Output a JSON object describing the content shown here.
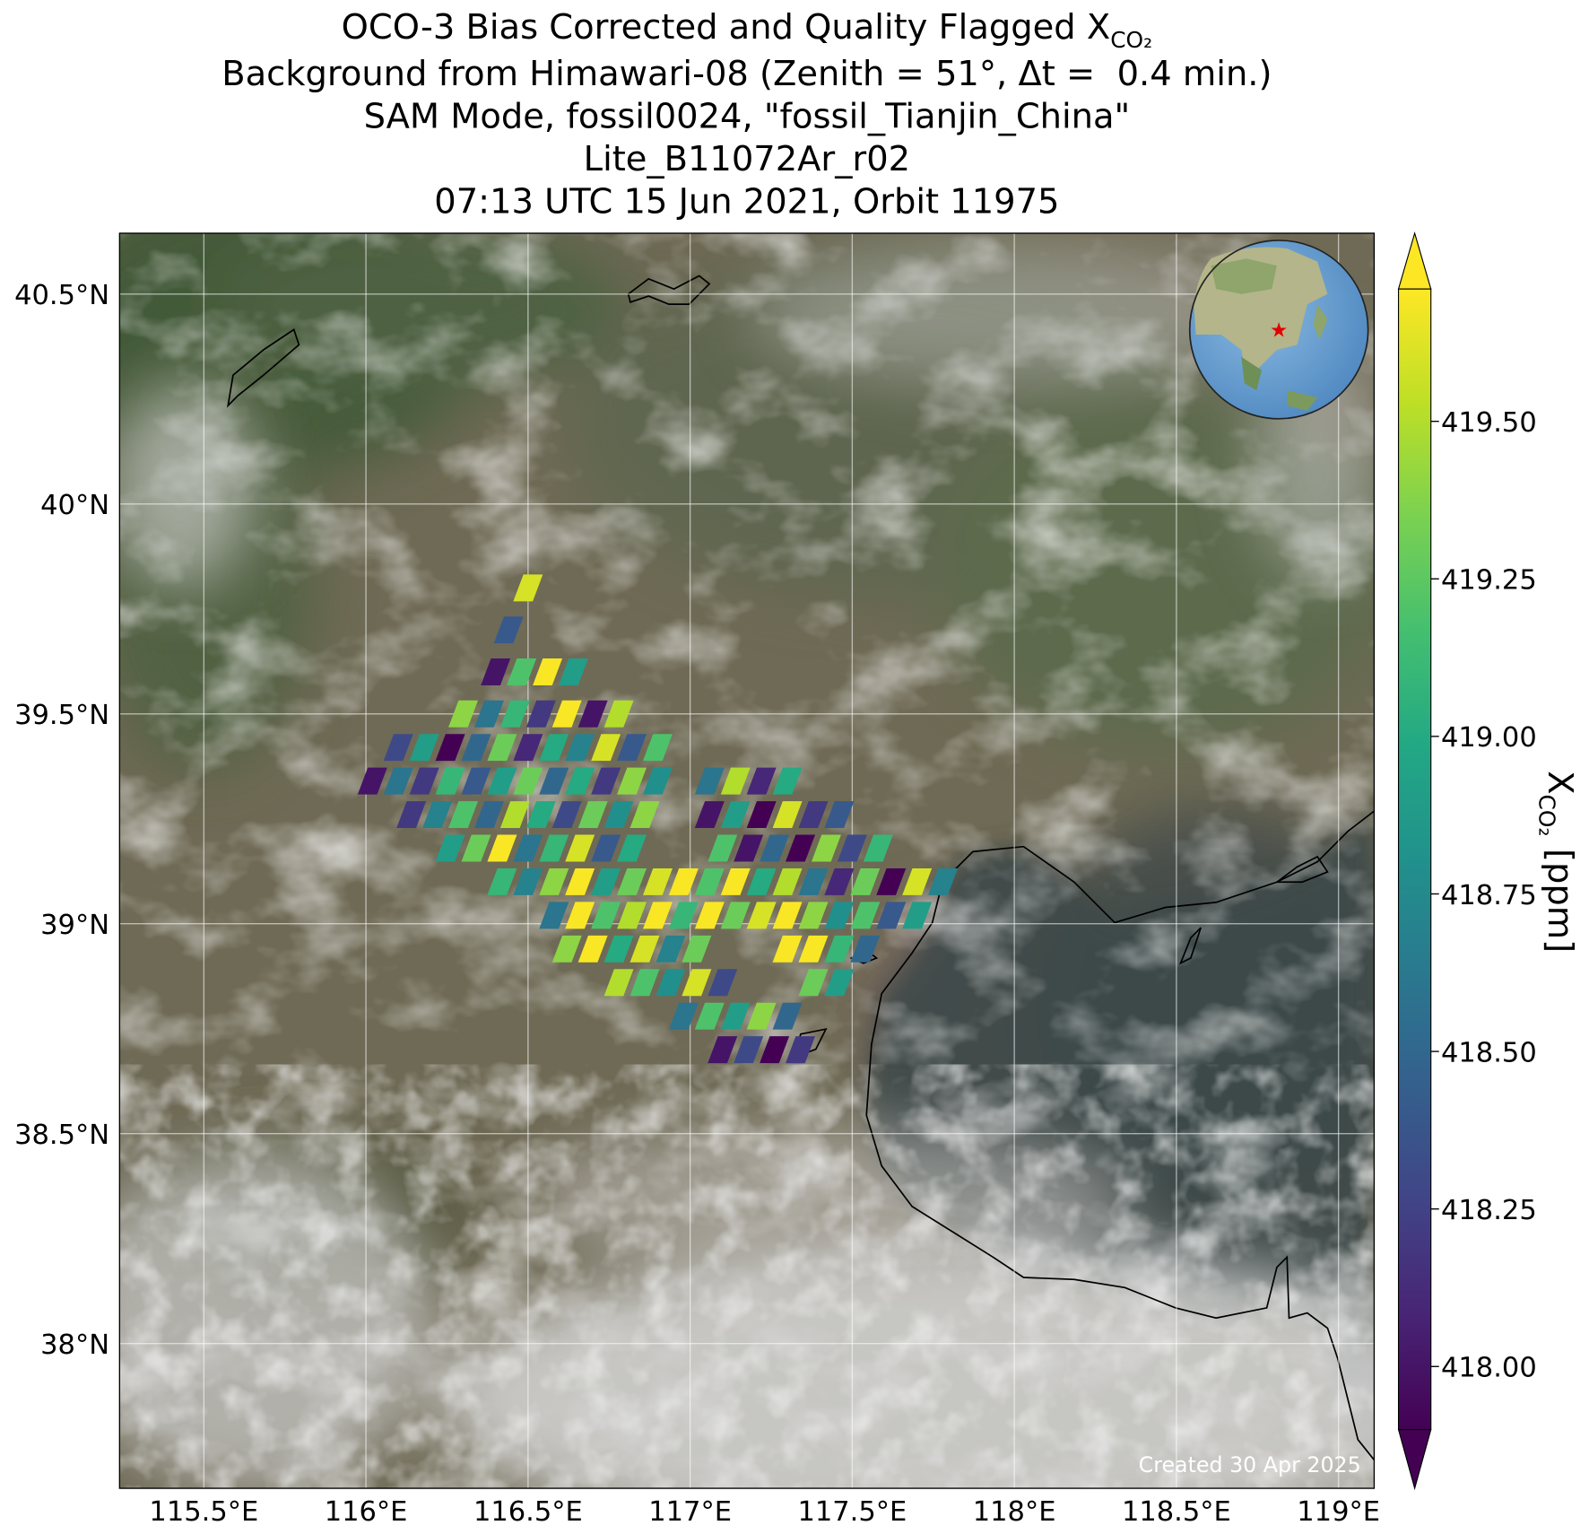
{
  "chart_data": {
    "type": "scatter",
    "title": {
      "text": "OCO-3 Bias Corrected and Quality Flagged X",
      "subscript": "CO₂"
    },
    "subtitle": [
      "Background from Himawari-08 (Zenith = 51°, Δt =  0.4 min.)",
      "SAM Mode, fossil0024, \"fossil_Tianjin_China\"",
      "Lite_B11072Ar_r02",
      "07:13 UTC 15 Jun 2021, Orbit 11975"
    ],
    "annotation": "Created 30 Apr 2025",
    "colorbar_label": {
      "text": "X",
      "subscript": "CO₂",
      "unit": "[ppm]"
    },
    "colormap": "viridis",
    "clim": [
      417.9,
      419.71
    ],
    "cticks": [
      {
        "value": 418,
        "label": "418.00"
      },
      {
        "value": 418.25,
        "label": "418.25"
      },
      {
        "value": 418.5,
        "label": "418.50"
      },
      {
        "value": 418.75,
        "label": "418.75"
      },
      {
        "value": 419,
        "label": "419.00"
      },
      {
        "value": 419.25,
        "label": "419.25"
      },
      {
        "value": 419.5,
        "label": "419.50"
      }
    ],
    "xlim": [
      115.24,
      119.11
    ],
    "ylim": [
      37.655,
      40.645
    ],
    "grid": true,
    "xticks": [
      {
        "value": 115.5,
        "label": "115.5°E"
      },
      {
        "value": 116,
        "label": "116°E"
      },
      {
        "value": 116.5,
        "label": "116.5°E"
      },
      {
        "value": 117,
        "label": "117°E"
      },
      {
        "value": 117.5,
        "label": "117.5°E"
      },
      {
        "value": 118,
        "label": "118°E"
      },
      {
        "value": 118.5,
        "label": "118.5°E"
      },
      {
        "value": 119,
        "label": "119°E"
      }
    ],
    "yticks": [
      {
        "value": 38,
        "label": "38°N"
      },
      {
        "value": 38.5,
        "label": "38.5°N"
      },
      {
        "value": 39,
        "label": "39°N"
      },
      {
        "value": 39.5,
        "label": "39.5°N"
      },
      {
        "value": 40,
        "label": "40°N"
      },
      {
        "value": 40.5,
        "label": "40.5°N"
      }
    ],
    "x": [
      116.5,
      116.44,
      116.4,
      116.48,
      116.56,
      116.64,
      116.3,
      116.38,
      116.46,
      116.54,
      116.62,
      116.7,
      116.78,
      116.1,
      116.18,
      116.26,
      116.34,
      116.42,
      116.5,
      116.58,
      116.66,
      116.74,
      116.82,
      116.9,
      116.02,
      116.1,
      116.18,
      116.26,
      116.34,
      116.42,
      116.5,
      116.58,
      116.66,
      116.74,
      116.82,
      116.9,
      117.06,
      117.14,
      117.22,
      117.3,
      116.14,
      116.22,
      116.3,
      116.38,
      116.46,
      116.54,
      116.62,
      116.7,
      116.78,
      116.86,
      117.06,
      117.14,
      117.22,
      117.3,
      117.38,
      117.46,
      116.26,
      116.34,
      116.42,
      116.5,
      116.58,
      116.66,
      116.74,
      116.82,
      117.1,
      117.18,
      117.26,
      117.34,
      117.42,
      117.5,
      117.58,
      116.42,
      116.5,
      116.58,
      116.66,
      116.74,
      116.82,
      116.9,
      116.98,
      117.06,
      117.14,
      117.22,
      117.3,
      117.38,
      117.46,
      117.54,
      117.62,
      117.7,
      117.78,
      116.58,
      116.66,
      116.74,
      116.82,
      116.9,
      116.98,
      117.06,
      117.14,
      117.22,
      117.3,
      117.38,
      117.46,
      117.54,
      117.62,
      117.7,
      116.62,
      116.7,
      116.78,
      116.86,
      116.94,
      117.02,
      117.3,
      117.38,
      117.46,
      117.54,
      116.78,
      116.86,
      116.94,
      117.02,
      117.1,
      117.38,
      117.46,
      116.98,
      117.06,
      117.14,
      117.22,
      117.3,
      117.1,
      117.18,
      117.26,
      117.34
    ],
    "y": [
      39.8,
      39.7,
      39.6,
      39.6,
      39.6,
      39.6,
      39.5,
      39.5,
      39.5,
      39.5,
      39.5,
      39.5,
      39.5,
      39.42,
      39.42,
      39.42,
      39.42,
      39.42,
      39.42,
      39.42,
      39.42,
      39.42,
      39.42,
      39.42,
      39.34,
      39.34,
      39.34,
      39.34,
      39.34,
      39.34,
      39.34,
      39.34,
      39.34,
      39.34,
      39.34,
      39.34,
      39.34,
      39.34,
      39.34,
      39.34,
      39.26,
      39.26,
      39.26,
      39.26,
      39.26,
      39.26,
      39.26,
      39.26,
      39.26,
      39.26,
      39.26,
      39.26,
      39.26,
      39.26,
      39.26,
      39.26,
      39.18,
      39.18,
      39.18,
      39.18,
      39.18,
      39.18,
      39.18,
      39.18,
      39.18,
      39.18,
      39.18,
      39.18,
      39.18,
      39.18,
      39.18,
      39.1,
      39.1,
      39.1,
      39.1,
      39.1,
      39.1,
      39.1,
      39.1,
      39.1,
      39.1,
      39.1,
      39.1,
      39.1,
      39.1,
      39.1,
      39.1,
      39.1,
      39.1,
      39.02,
      39.02,
      39.02,
      39.02,
      39.02,
      39.02,
      39.02,
      39.02,
      39.02,
      39.02,
      39.02,
      39.02,
      39.02,
      39.02,
      39.02,
      38.94,
      38.94,
      38.94,
      38.94,
      38.94,
      38.94,
      38.94,
      38.94,
      38.94,
      38.94,
      38.86,
      38.86,
      38.86,
      38.86,
      38.86,
      38.86,
      38.86,
      38.78,
      38.78,
      38.78,
      38.78,
      38.78,
      38.7,
      38.7,
      38.7,
      38.7
    ],
    "values": [
      419.6,
      418.4,
      418.0,
      419.2,
      419.7,
      418.9,
      419.4,
      418.6,
      419.1,
      418.2,
      419.7,
      418.0,
      419.5,
      418.3,
      418.9,
      417.9,
      418.5,
      419.3,
      418.1,
      419.0,
      418.7,
      419.6,
      418.4,
      419.2,
      418.0,
      418.6,
      418.2,
      419.1,
      418.4,
      418.9,
      419.3,
      418.5,
      419.0,
      418.2,
      419.4,
      418.8,
      418.6,
      419.5,
      418.1,
      419.0,
      418.2,
      418.7,
      419.2,
      418.5,
      419.5,
      419.0,
      418.3,
      419.3,
      418.8,
      419.4,
      418.0,
      418.9,
      417.9,
      419.6,
      418.2,
      418.4,
      418.9,
      419.3,
      419.7,
      418.6,
      419.1,
      419.6,
      418.4,
      419.0,
      419.2,
      418.0,
      418.5,
      417.9,
      419.4,
      418.3,
      419.1,
      419.1,
      418.7,
      419.4,
      419.7,
      418.9,
      419.3,
      419.6,
      419.7,
      419.2,
      419.7,
      419.0,
      419.5,
      418.6,
      418.1,
      419.3,
      417.9,
      419.6,
      418.7,
      418.6,
      419.7,
      419.2,
      419.5,
      419.7,
      419.1,
      419.7,
      419.3,
      419.6,
      419.7,
      419.4,
      418.8,
      419.2,
      418.4,
      418.9,
      419.4,
      419.7,
      419.0,
      419.6,
      418.7,
      419.3,
      419.7,
      419.7,
      419.1,
      418.5,
      419.5,
      419.2,
      418.8,
      419.6,
      418.3,
      419.3,
      418.9,
      418.6,
      419.2,
      418.9,
      419.4,
      418.5,
      418.0,
      418.3,
      417.9,
      418.2
    ]
  }
}
